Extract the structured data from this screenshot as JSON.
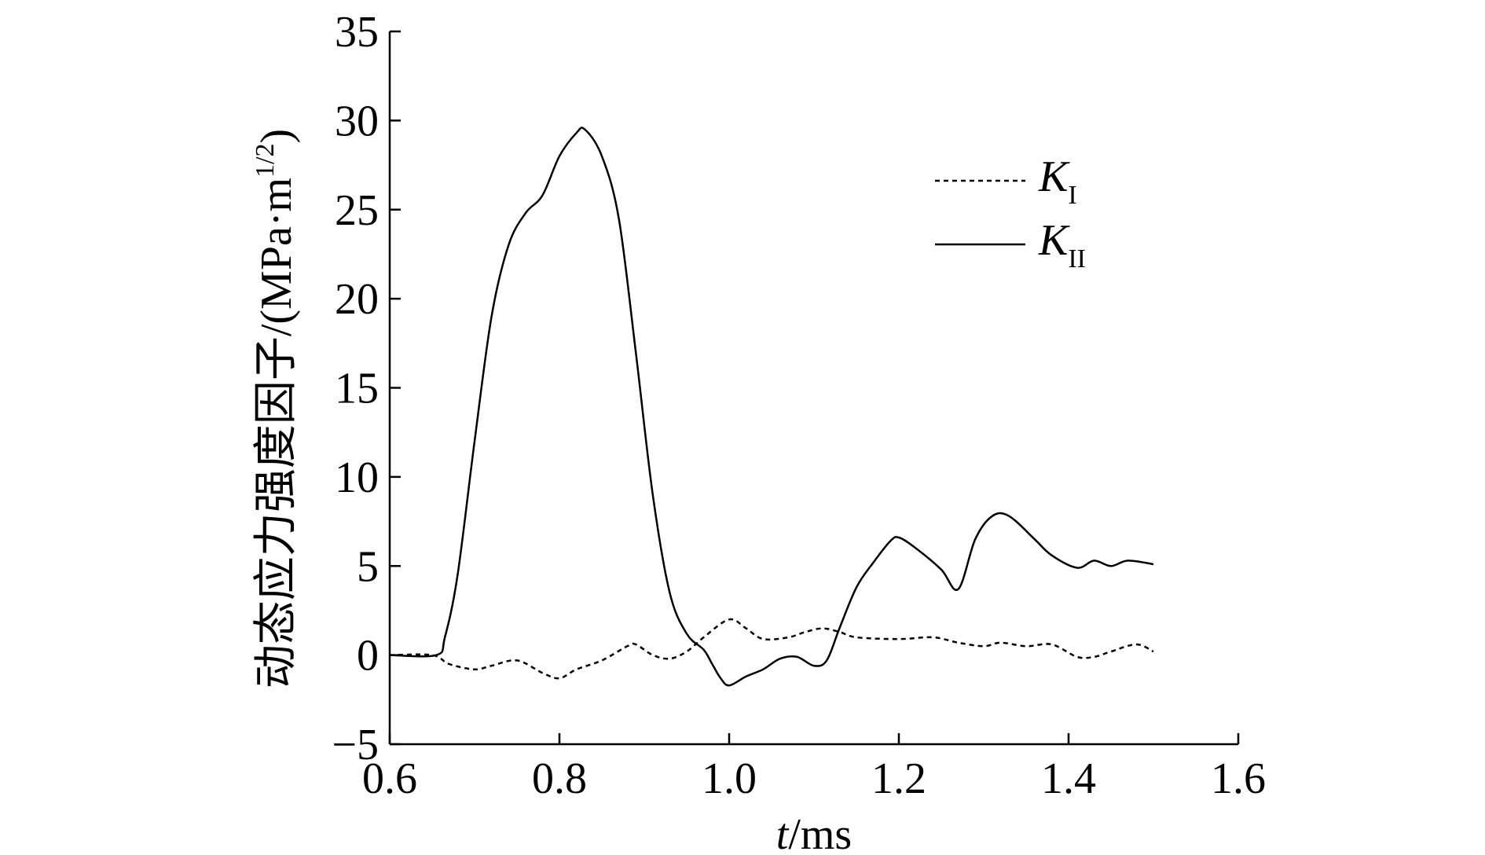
{
  "chart_data": {
    "type": "line",
    "xlabel": {
      "italic": "t",
      "rest": "/ms"
    },
    "ylabel": {
      "main": "动态应力强度因子/(MPa·m",
      "sup": "1/2",
      "close": ")"
    },
    "xlim": [
      0.6,
      1.6
    ],
    "ylim": [
      -5,
      35
    ],
    "xticks": [
      0.6,
      0.8,
      1.0,
      1.2,
      1.4,
      1.6
    ],
    "xtick_labels": [
      "0.6",
      "0.8",
      "1.0",
      "1.2",
      "1.4",
      "1.6"
    ],
    "yticks": [
      -5,
      0,
      5,
      10,
      15,
      20,
      25,
      30,
      35
    ],
    "ytick_labels": [
      "−5",
      "0",
      "5",
      "10",
      "15",
      "20",
      "25",
      "30",
      "35"
    ],
    "grid": false,
    "legend_position": "upper-right",
    "series": [
      {
        "name": "K_I",
        "label_main": "K",
        "label_sub": "I",
        "style": "dashed",
        "color": "#000000",
        "points": [
          [
            0.6,
            0.0
          ],
          [
            0.65,
            0.0
          ],
          [
            0.67,
            -0.5
          ],
          [
            0.7,
            -0.8
          ],
          [
            0.72,
            -0.6
          ],
          [
            0.75,
            -0.3
          ],
          [
            0.78,
            -1.0
          ],
          [
            0.8,
            -1.3
          ],
          [
            0.82,
            -0.8
          ],
          [
            0.85,
            -0.3
          ],
          [
            0.88,
            0.5
          ],
          [
            0.89,
            0.6
          ],
          [
            0.91,
            0.0
          ],
          [
            0.93,
            -0.2
          ],
          [
            0.95,
            0.2
          ],
          [
            0.97,
            1.0
          ],
          [
            1.0,
            2.0
          ],
          [
            1.02,
            1.5
          ],
          [
            1.04,
            0.9
          ],
          [
            1.07,
            1.0
          ],
          [
            1.09,
            1.3
          ],
          [
            1.11,
            1.5
          ],
          [
            1.13,
            1.3
          ],
          [
            1.15,
            1.0
          ],
          [
            1.2,
            0.9
          ],
          [
            1.24,
            1.0
          ],
          [
            1.27,
            0.7
          ],
          [
            1.3,
            0.5
          ],
          [
            1.32,
            0.7
          ],
          [
            1.35,
            0.5
          ],
          [
            1.38,
            0.6
          ],
          [
            1.41,
            -0.1
          ],
          [
            1.43,
            -0.1
          ],
          [
            1.45,
            0.2
          ],
          [
            1.48,
            0.6
          ],
          [
            1.5,
            0.2
          ]
        ]
      },
      {
        "name": "K_II",
        "label_main": "K",
        "label_sub": "II",
        "style": "solid",
        "color": "#000000",
        "points": [
          [
            0.6,
            0.0
          ],
          [
            0.655,
            0.0
          ],
          [
            0.665,
            1.0
          ],
          [
            0.68,
            4.5
          ],
          [
            0.7,
            12.0
          ],
          [
            0.72,
            19.0
          ],
          [
            0.74,
            23.0
          ],
          [
            0.76,
            24.8
          ],
          [
            0.78,
            25.8
          ],
          [
            0.8,
            28.0
          ],
          [
            0.82,
            29.3
          ],
          [
            0.83,
            29.5
          ],
          [
            0.85,
            28.0
          ],
          [
            0.87,
            24.5
          ],
          [
            0.89,
            17.0
          ],
          [
            0.91,
            9.0
          ],
          [
            0.93,
            3.5
          ],
          [
            0.95,
            1.2
          ],
          [
            0.97,
            0.3
          ],
          [
            0.98,
            -0.5
          ],
          [
            0.99,
            -1.3
          ],
          [
            1.0,
            -1.7
          ],
          [
            1.02,
            -1.2
          ],
          [
            1.04,
            -0.8
          ],
          [
            1.06,
            -0.2
          ],
          [
            1.08,
            -0.1
          ],
          [
            1.1,
            -0.6
          ],
          [
            1.115,
            -0.3
          ],
          [
            1.13,
            1.5
          ],
          [
            1.15,
            3.8
          ],
          [
            1.17,
            5.2
          ],
          [
            1.19,
            6.4
          ],
          [
            1.2,
            6.6
          ],
          [
            1.22,
            6.0
          ],
          [
            1.25,
            4.8
          ],
          [
            1.27,
            3.7
          ],
          [
            1.29,
            6.5
          ],
          [
            1.31,
            7.8
          ],
          [
            1.33,
            7.8
          ],
          [
            1.36,
            6.5
          ],
          [
            1.38,
            5.6
          ],
          [
            1.41,
            4.9
          ],
          [
            1.43,
            5.3
          ],
          [
            1.45,
            5.0
          ],
          [
            1.47,
            5.3
          ],
          [
            1.5,
            5.1
          ]
        ]
      }
    ]
  }
}
